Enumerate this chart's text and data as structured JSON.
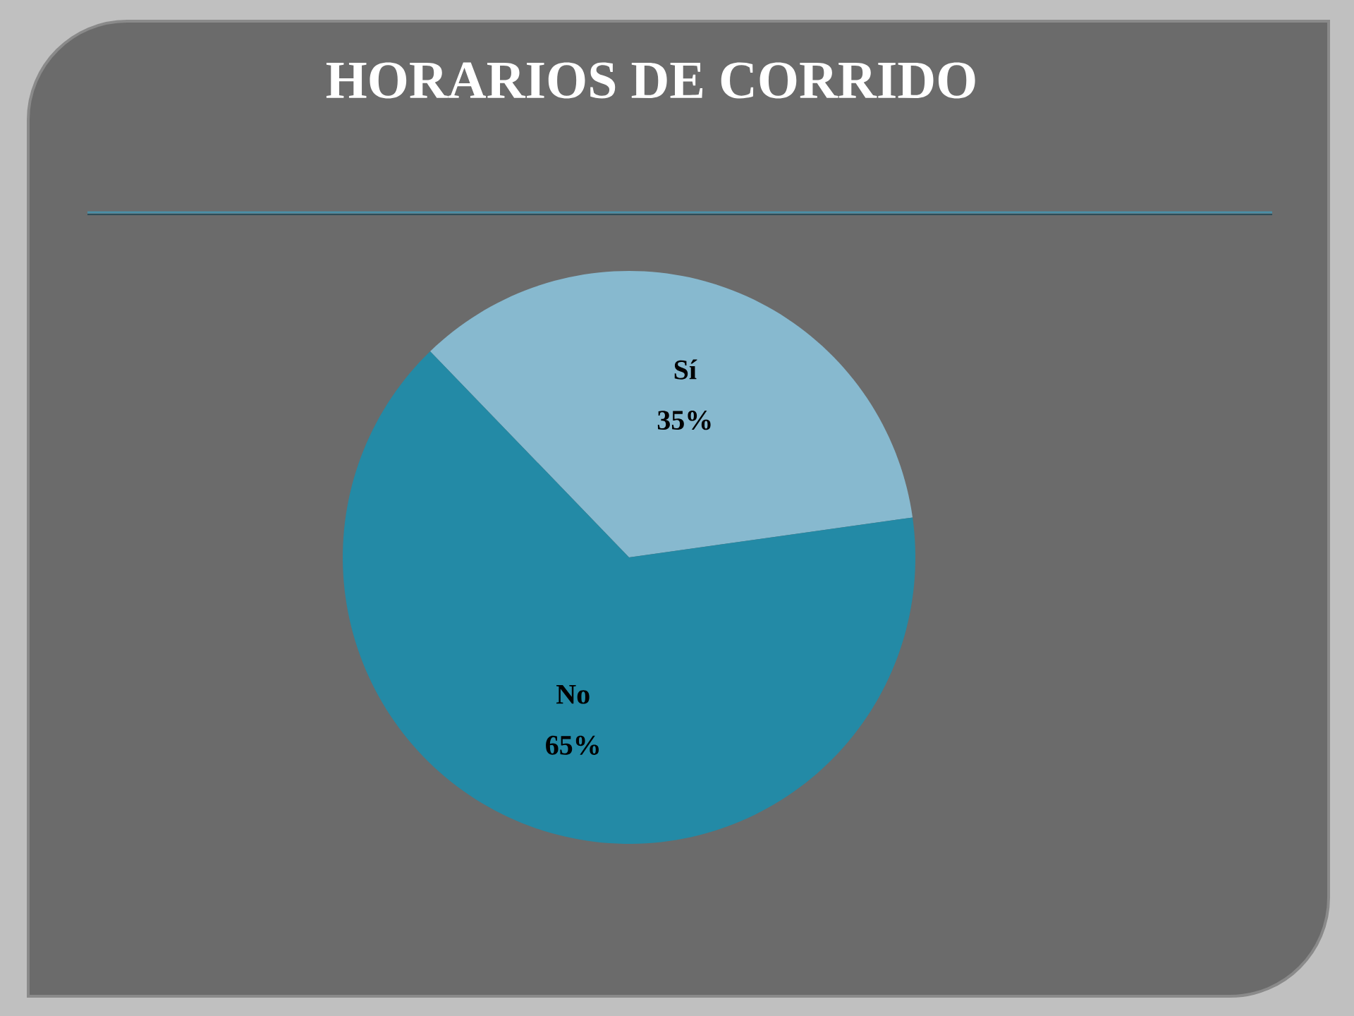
{
  "chart_data": {
    "type": "pie",
    "title": "HORARIOS DE CORRIDO",
    "categories": [
      "Sí",
      "No"
    ],
    "values": [
      35,
      65
    ],
    "colors": [
      "#87b9cf",
      "#238aa6"
    ],
    "value_labels": [
      "35%",
      "65%"
    ]
  }
}
